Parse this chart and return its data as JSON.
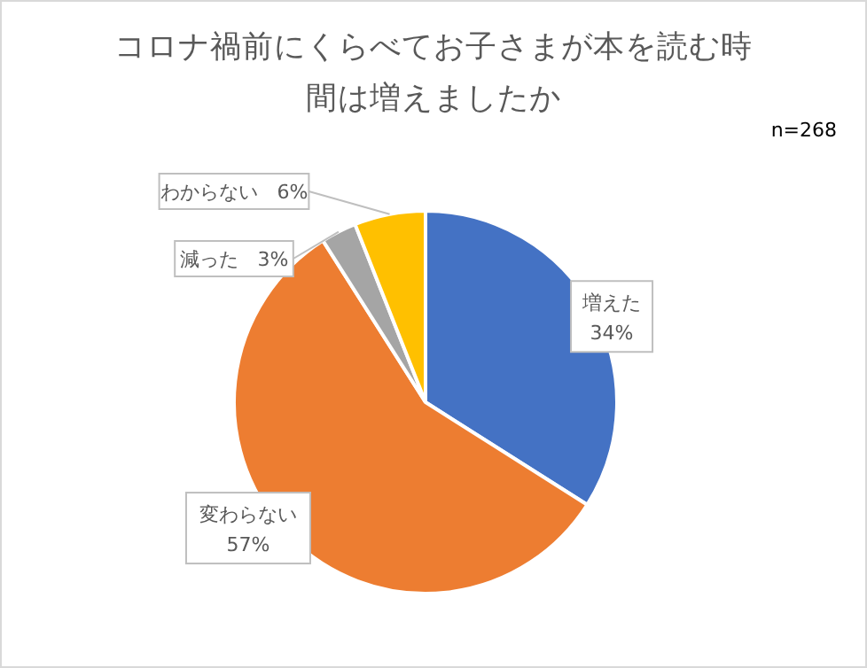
{
  "chart_data": {
    "type": "pie",
    "title": "コロナ禍前にくらべてお子さまが本を読む時間は増えましたか",
    "annotations": [
      "n=268"
    ],
    "categories": [
      "増えた",
      "変わらない",
      "減った",
      "わからない"
    ],
    "values": [
      34,
      57,
      3,
      6
    ],
    "value_labels": [
      "34%",
      "57%",
      "3%",
      "6%"
    ],
    "colors": [
      "#4472c4",
      "#ed7d31",
      "#a5a5a5",
      "#ffc000"
    ]
  }
}
